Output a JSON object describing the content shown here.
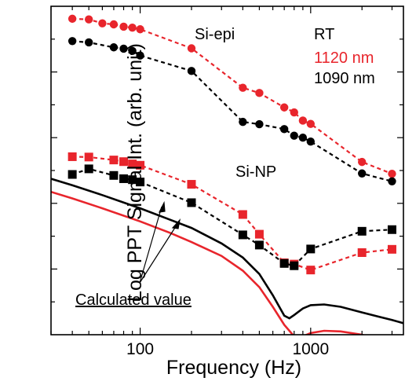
{
  "chart_data": {
    "type": "line",
    "xlabel": "Frequency (Hz)",
    "ylabel": "Log PPT Signal Int. (arb. unit)",
    "xscale": "log",
    "xlim": [
      30,
      3500
    ],
    "ylim": [
      0,
      10
    ],
    "x_ticks": [
      {
        "value": 100,
        "label": "100"
      },
      {
        "value": 1000,
        "label": "1000"
      }
    ],
    "y_tick_labels": "none",
    "annotations": {
      "si_epi": "Si-epi",
      "si_np": "Si-NP",
      "calculated": "Calculated value"
    },
    "legend": {
      "title": "RT",
      "entries": [
        {
          "label": "1120 nm",
          "color": "#e8252c"
        },
        {
          "label": "1090 nm",
          "color": "#000000"
        }
      ]
    },
    "series": [
      {
        "group": "Si-epi",
        "wavelength": "1120 nm",
        "color": "#e8252c",
        "marker": "circle",
        "style": "dashed",
        "x": [
          40,
          50,
          60,
          70,
          80,
          90,
          100,
          200,
          400,
          500,
          700,
          800,
          900,
          1000,
          2000,
          3000
        ],
        "y": [
          9.62,
          9.6,
          9.48,
          9.45,
          9.38,
          9.35,
          9.3,
          8.72,
          7.52,
          7.36,
          6.92,
          6.77,
          6.52,
          6.42,
          5.26,
          4.9
        ]
      },
      {
        "group": "Si-epi",
        "wavelength": "1090 nm",
        "color": "#000000",
        "marker": "circle",
        "style": "dashed",
        "x": [
          40,
          50,
          70,
          80,
          90,
          100,
          200,
          400,
          500,
          700,
          800,
          900,
          1000,
          2000,
          3000
        ],
        "y": [
          8.94,
          8.9,
          8.75,
          8.71,
          8.64,
          8.5,
          8.03,
          6.48,
          6.41,
          6.26,
          6.06,
          6.0,
          5.88,
          4.91,
          4.67
        ]
      },
      {
        "group": "Si-NP",
        "wavelength": "1120 nm",
        "color": "#e8252c",
        "marker": "square",
        "style": "dashed",
        "x": [
          40,
          50,
          70,
          80,
          90,
          100,
          200,
          400,
          500,
          700,
          800,
          1000,
          2000,
          3000
        ],
        "y": [
          5.42,
          5.41,
          5.32,
          5.27,
          5.2,
          5.16,
          4.58,
          3.66,
          3.06,
          2.19,
          2.15,
          1.97,
          2.5,
          2.6
        ]
      },
      {
        "group": "Si-NP",
        "wavelength": "1090 nm",
        "color": "#000000",
        "marker": "square",
        "style": "dashed",
        "x": [
          40,
          50,
          70,
          80,
          90,
          100,
          200,
          400,
          500,
          700,
          800,
          1000,
          2000,
          3000
        ],
        "y": [
          4.88,
          5.05,
          4.85,
          4.75,
          4.72,
          4.65,
          4.02,
          3.04,
          2.73,
          2.17,
          2.1,
          2.61,
          3.15,
          3.2
        ]
      },
      {
        "group": "Calculated value",
        "wavelength": "1090 nm",
        "color": "#000000",
        "marker": "none",
        "style": "solid",
        "x": [
          30,
          40,
          60,
          100,
          150,
          200,
          300,
          400,
          500,
          600,
          700,
          750,
          800,
          900,
          1000,
          1200,
          1500,
          2000,
          2500,
          3000,
          3500
        ],
        "y": [
          4.75,
          4.55,
          4.25,
          3.85,
          3.5,
          3.25,
          2.78,
          2.35,
          1.85,
          1.2,
          0.58,
          0.5,
          0.6,
          0.8,
          0.9,
          0.92,
          0.85,
          0.68,
          0.55,
          0.45,
          0.35
        ]
      },
      {
        "group": "Calculated value",
        "wavelength": "1120 nm",
        "color": "#e8252c",
        "marker": "none",
        "style": "solid",
        "x": [
          30,
          40,
          60,
          100,
          150,
          200,
          300,
          400,
          500,
          600,
          700,
          800,
          850,
          900,
          1000,
          1200,
          1500,
          2000,
          2500,
          3000,
          3500
        ],
        "y": [
          4.35,
          4.15,
          3.85,
          3.45,
          3.1,
          2.82,
          2.4,
          1.95,
          1.45,
          0.85,
          0.3,
          -0.05,
          -0.1,
          -0.05,
          0.05,
          0.12,
          0.1,
          0.0,
          -0.15,
          -0.3,
          -0.45
        ]
      }
    ]
  }
}
